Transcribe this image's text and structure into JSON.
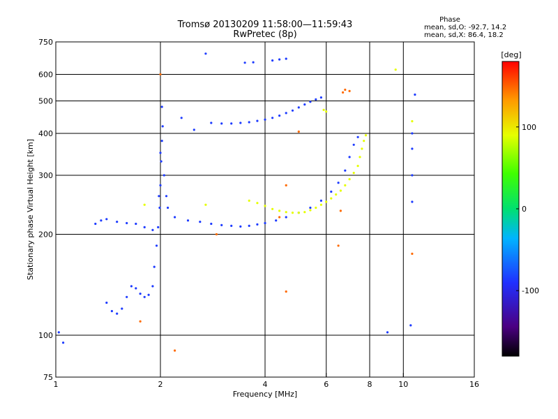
{
  "header": {
    "title_line1": "Tromsø 20130209 11:58:00—11:59:43",
    "title_line2": "RwPretec (8p)"
  },
  "phase_box": {
    "heading": "Phase",
    "line_o": "mean, sd,O: -92.7, 14.2",
    "line_x": "mean, sd,X:  86.4, 18.2"
  },
  "colorbar": {
    "label": "[deg]",
    "range": [
      -180,
      180
    ],
    "ticks": [
      {
        "value": 100,
        "label": "100"
      },
      {
        "value": 0,
        "label": "0"
      },
      {
        "value": -100,
        "label": "-100"
      }
    ]
  },
  "chart_data": {
    "type": "scatter",
    "title": "Tromsø 20130209 11:58:00—11:59:43",
    "subtitle": "RwPretec (8p)",
    "xlabel": "Frequency [MHz]",
    "ylabel": "Stationary phase Virtual Height [km]",
    "x_scale": "log",
    "y_scale": "log",
    "xlim": [
      1,
      16
    ],
    "ylim": [
      75,
      750
    ],
    "x_ticks": [
      {
        "value": 1,
        "label": "1"
      },
      {
        "value": 2,
        "label": "2"
      },
      {
        "value": 4,
        "label": "4"
      },
      {
        "value": 6,
        "label": "6"
      },
      {
        "value": 8,
        "label": "8"
      },
      {
        "value": 10,
        "label": "10"
      },
      {
        "value": 16,
        "label": "16"
      }
    ],
    "y_ticks": [
      {
        "value": 75,
        "label": "75"
      },
      {
        "value": 100,
        "label": "100"
      },
      {
        "value": 200,
        "label": "200"
      },
      {
        "value": 300,
        "label": "300"
      },
      {
        "value": 400,
        "label": "400"
      },
      {
        "value": 500,
        "label": "500"
      },
      {
        "value": 600,
        "label": "600"
      },
      {
        "value": 750,
        "label": "750"
      }
    ],
    "x_gridlines": [
      2,
      4,
      6,
      8,
      10
    ],
    "y_gridlines": [
      100,
      200,
      300,
      400,
      500,
      600
    ],
    "grid": true,
    "color_scale": "phase [deg], rainbow from black/purple (-180) to red (+180)",
    "series": [
      {
        "name": "O-mode traces (phase near -92.7 deg)",
        "color": "#1e3cff",
        "points": [
          [
            1.4,
            125
          ],
          [
            1.45,
            118
          ],
          [
            1.5,
            116
          ],
          [
            1.55,
            120
          ],
          [
            1.6,
            130
          ],
          [
            1.65,
            140
          ],
          [
            1.7,
            138
          ],
          [
            1.75,
            133
          ],
          [
            1.8,
            130
          ],
          [
            1.85,
            132
          ],
          [
            1.9,
            140
          ],
          [
            1.92,
            160
          ],
          [
            1.95,
            185
          ],
          [
            1.97,
            210
          ],
          [
            1.99,
            240
          ],
          [
            2.0,
            280
          ],
          [
            2.01,
            330
          ],
          [
            2.02,
            380
          ],
          [
            2.03,
            420
          ],
          [
            2.02,
            480
          ],
          [
            2.0,
            350
          ],
          [
            1.98,
            260
          ],
          [
            2.05,
            300
          ],
          [
            2.08,
            260
          ],
          [
            2.1,
            240
          ],
          [
            2.2,
            225
          ],
          [
            2.4,
            220
          ],
          [
            2.6,
            218
          ],
          [
            2.8,
            215
          ],
          [
            3.0,
            213
          ],
          [
            3.2,
            212
          ],
          [
            3.4,
            211
          ],
          [
            3.6,
            212
          ],
          [
            3.8,
            214
          ],
          [
            4.0,
            216
          ],
          [
            4.3,
            220
          ],
          [
            4.6,
            225
          ],
          [
            5.0,
            232
          ],
          [
            5.4,
            240
          ],
          [
            5.8,
            252
          ],
          [
            6.2,
            268
          ],
          [
            6.5,
            285
          ],
          [
            6.8,
            310
          ],
          [
            7.0,
            340
          ],
          [
            7.2,
            370
          ],
          [
            7.4,
            390
          ],
          [
            2.8,
            430
          ],
          [
            3.0,
            428
          ],
          [
            3.2,
            428
          ],
          [
            3.4,
            430
          ],
          [
            3.6,
            432
          ],
          [
            3.8,
            436
          ],
          [
            4.0,
            440
          ],
          [
            4.2,
            445
          ],
          [
            4.4,
            452
          ],
          [
            4.6,
            460
          ],
          [
            4.8,
            468
          ],
          [
            5.0,
            478
          ],
          [
            5.2,
            488
          ],
          [
            5.4,
            497
          ],
          [
            5.6,
            505
          ],
          [
            5.8,
            512
          ],
          [
            3.5,
            650
          ],
          [
            3.7,
            652
          ],
          [
            4.2,
            660
          ],
          [
            4.4,
            665
          ],
          [
            4.6,
            668
          ],
          [
            1.3,
            215
          ],
          [
            1.35,
            220
          ],
          [
            1.4,
            222
          ],
          [
            1.5,
            218
          ],
          [
            1.6,
            216
          ],
          [
            1.7,
            215
          ],
          [
            1.8,
            210
          ],
          [
            1.9,
            206
          ],
          [
            1.02,
            102
          ],
          [
            1.05,
            95
          ],
          [
            9.0,
            102
          ],
          [
            10.5,
            107
          ],
          [
            10.8,
            522
          ],
          [
            10.6,
            400
          ],
          [
            10.6,
            360
          ],
          [
            10.6,
            250
          ],
          [
            10.6,
            300
          ],
          [
            2.7,
            692
          ],
          [
            2.3,
            445
          ],
          [
            2.5,
            410
          ]
        ]
      },
      {
        "name": "X-mode traces (phase near 86.4 deg)",
        "color": "#e6ff00",
        "points": [
          [
            3.6,
            252
          ],
          [
            3.8,
            248
          ],
          [
            4.0,
            243
          ],
          [
            4.2,
            238
          ],
          [
            4.4,
            235
          ],
          [
            4.6,
            233
          ],
          [
            4.8,
            232
          ],
          [
            5.0,
            232
          ],
          [
            5.2,
            233
          ],
          [
            5.4,
            236
          ],
          [
            5.6,
            240
          ],
          [
            5.8,
            245
          ],
          [
            6.0,
            250
          ],
          [
            6.2,
            256
          ],
          [
            6.4,
            263
          ],
          [
            6.6,
            270
          ],
          [
            6.8,
            280
          ],
          [
            7.0,
            292
          ],
          [
            7.2,
            305
          ],
          [
            7.4,
            320
          ],
          [
            7.5,
            340
          ],
          [
            7.6,
            360
          ],
          [
            7.7,
            380
          ],
          [
            7.8,
            395
          ],
          [
            5.9,
            470
          ],
          [
            6.0,
            465
          ],
          [
            9.5,
            620
          ],
          [
            10.6,
            435
          ],
          [
            2.7,
            245
          ],
          [
            1.8,
            245
          ]
        ]
      },
      {
        "name": "Scattered echoes (other phases)",
        "color": "#ff6a00",
        "points": [
          [
            6.7,
            530
          ],
          [
            6.8,
            540
          ],
          [
            7.0,
            535
          ],
          [
            6.5,
            185
          ],
          [
            10.6,
            175
          ],
          [
            2.0,
            600
          ],
          [
            2.2,
            90
          ],
          [
            4.6,
            135
          ],
          [
            4.4,
            225
          ],
          [
            5.0,
            405
          ],
          [
            1.75,
            110
          ],
          [
            6.6,
            235
          ],
          [
            2.9,
            200
          ],
          [
            4.6,
            280
          ]
        ]
      }
    ]
  }
}
